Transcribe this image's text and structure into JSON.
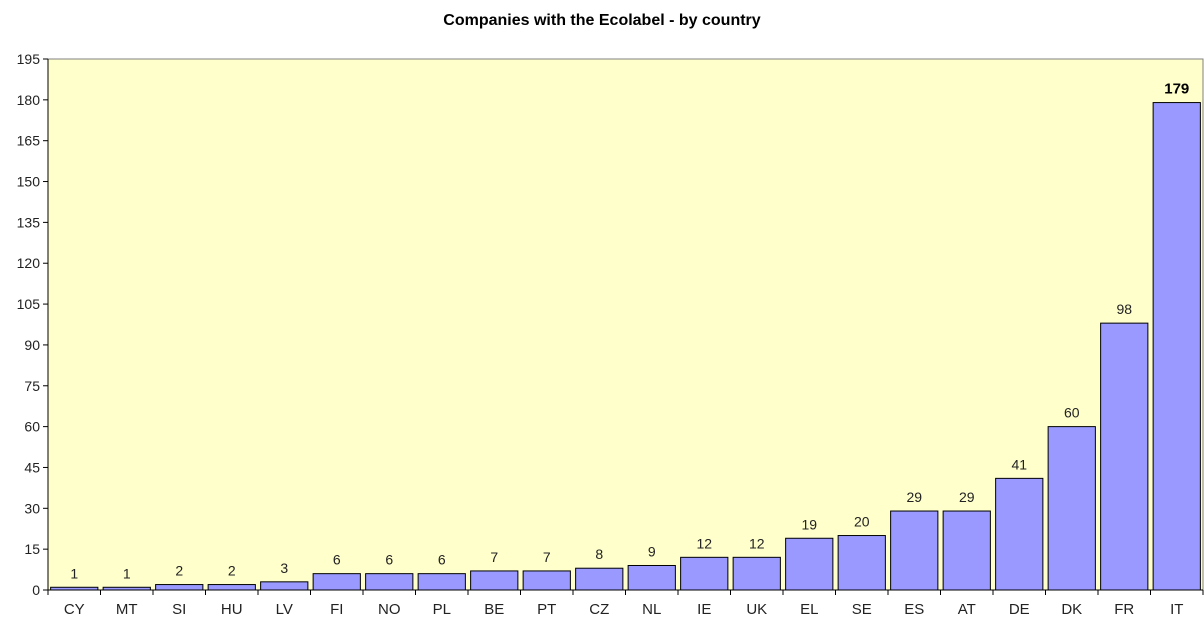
{
  "chart_data": {
    "type": "bar",
    "title": "Companies with the Ecolabel - by country",
    "xlabel": "",
    "ylabel": "",
    "categories": [
      "CY",
      "MT",
      "SI",
      "HU",
      "LV",
      "FI",
      "NO",
      "PL",
      "BE",
      "PT",
      "CZ",
      "NL",
      "IE",
      "UK",
      "EL",
      "SE",
      "ES",
      "AT",
      "DE",
      "DK",
      "FR",
      "IT"
    ],
    "values": [
      1,
      1,
      2,
      2,
      3,
      6,
      6,
      6,
      7,
      7,
      8,
      9,
      12,
      12,
      19,
      20,
      29,
      29,
      41,
      60,
      98,
      179
    ],
    "ylim": [
      0,
      195
    ],
    "yticks": [
      0,
      15,
      30,
      45,
      60,
      75,
      90,
      105,
      120,
      135,
      150,
      165,
      180,
      195
    ],
    "grid": false,
    "highlight_label": "IT",
    "colors": {
      "plot_background": "#FFFFCC",
      "bar_fill": "#9999FF",
      "bar_stroke": "#000000"
    }
  }
}
